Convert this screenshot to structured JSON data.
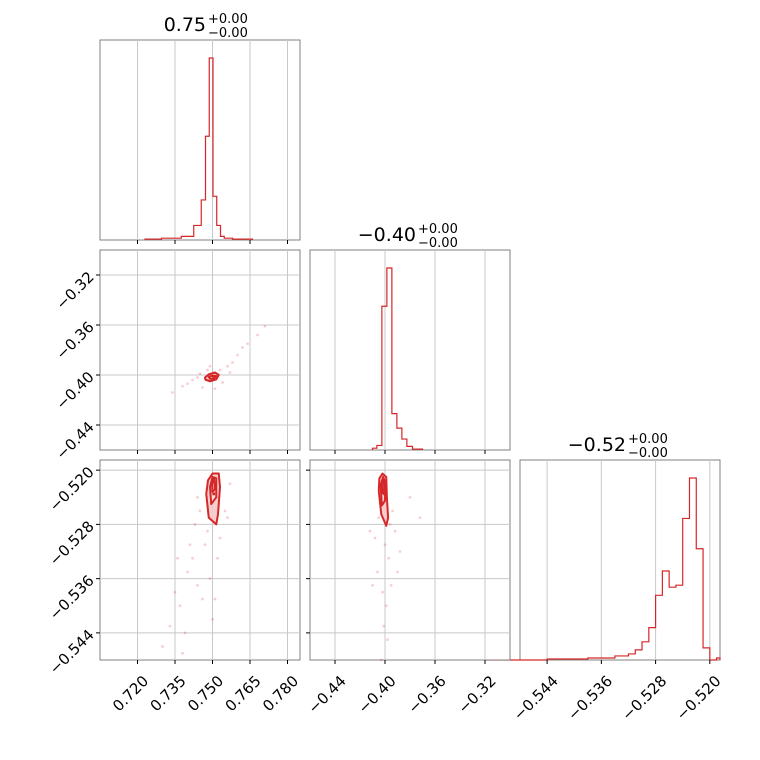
{
  "colors": {
    "series": "#d62728",
    "fill": "#f5c9c9",
    "grid": "#c8c8c8",
    "frame": "#808080"
  },
  "chart_data": {
    "type": "corner",
    "parameters": [
      "p0",
      "p1",
      "p2"
    ],
    "titles": [
      {
        "value": "0.75",
        "plus": "+0.00",
        "minus": "−0.00"
      },
      {
        "value": "−0.40",
        "plus": "+0.00",
        "minus": "−0.00"
      },
      {
        "value": "−0.52",
        "plus": "+0.00",
        "minus": "−0.00"
      }
    ],
    "ranges": [
      [
        0.705,
        0.785
      ],
      [
        -0.46,
        -0.3
      ],
      [
        -0.548,
        -0.5185
      ]
    ],
    "ticks": [
      {
        "values": [
          0.72,
          0.735,
          0.75,
          0.765,
          0.78
        ],
        "labels": [
          "0.720",
          "0.735",
          "0.750",
          "0.765",
          "0.780"
        ]
      },
      {
        "values": [
          -0.44,
          -0.4,
          -0.36,
          -0.32
        ],
        "labels": [
          "−0.44",
          "−0.40",
          "−0.36",
          "−0.32"
        ]
      },
      {
        "values": [
          -0.544,
          -0.536,
          -0.528,
          -0.52
        ],
        "labels": [
          "−0.544",
          "−0.536",
          "−0.528",
          "−0.520"
        ]
      }
    ],
    "histograms": [
      {
        "edges": [
          0.723,
          0.7296,
          0.7375,
          0.7425,
          0.7455,
          0.7472,
          0.7487,
          0.7502,
          0.7517,
          0.7532,
          0.7547,
          0.758,
          0.766
        ],
        "counts": [
          0.005,
          0.01,
          0.02,
          0.08,
          0.22,
          0.57,
          1.0,
          0.24,
          0.08,
          0.02,
          0.01,
          0.005
        ]
      },
      {
        "edges": [
          -0.41,
          -0.4065,
          -0.4025,
          -0.3985,
          -0.3945,
          -0.3905,
          -0.3865,
          -0.3825,
          -0.378,
          -0.37
        ],
        "counts": [
          0.01,
          0.025,
          0.79,
          1.0,
          0.2,
          0.12,
          0.06,
          0.02,
          0.005
        ]
      },
      {
        "edges": [
          -0.553,
          -0.544,
          -0.543,
          -0.538,
          -0.534,
          -0.532,
          -0.531,
          -0.53,
          -0.529,
          -0.528,
          -0.527,
          -0.526,
          -0.525,
          -0.524,
          -0.523,
          -0.522,
          -0.521,
          -0.52,
          -0.519,
          -0.5185
        ],
        "counts": [
          0.0,
          0.005,
          0.005,
          0.01,
          0.02,
          0.03,
          0.05,
          0.09,
          0.16,
          0.32,
          0.44,
          0.36,
          0.37,
          0.7,
          0.9,
          0.55,
          0.06,
          0.0,
          0.01
        ]
      }
    ],
    "scatters": [
      {
        "x_param": 0,
        "y_param": 1,
        "center": [
          0.7505,
          -0.4015
        ],
        "contours": [
          [
            [
              0.747,
              -0.402
            ],
            [
              0.7485,
              -0.3995
            ],
            [
              0.751,
              -0.398
            ],
            [
              0.7525,
              -0.4
            ],
            [
              0.7515,
              -0.4035
            ],
            [
              0.749,
              -0.405
            ],
            [
              0.7472,
              -0.4038
            ]
          ],
          [
            [
              0.7485,
              -0.4015
            ],
            [
              0.75,
              -0.4005
            ],
            [
              0.7515,
              -0.4008
            ],
            [
              0.7505,
              -0.403
            ],
            [
              0.749,
              -0.403
            ]
          ]
        ],
        "samples": [
          [
            0.742,
            -0.404
          ],
          [
            0.745,
            -0.399
          ],
          [
            0.753,
            -0.396
          ],
          [
            0.756,
            -0.393
          ],
          [
            0.76,
            -0.384
          ],
          [
            0.762,
            -0.378
          ],
          [
            0.768,
            -0.368
          ],
          [
            0.771,
            -0.361
          ],
          [
            0.738,
            -0.409
          ],
          [
            0.734,
            -0.414
          ],
          [
            0.746,
            -0.41
          ],
          [
            0.754,
            -0.406
          ],
          [
            0.748,
            -0.396
          ],
          [
            0.758,
            -0.39
          ],
          [
            0.744,
            -0.402
          ],
          [
            0.751,
            -0.411
          ],
          [
            0.757,
            -0.398
          ],
          [
            0.74,
            -0.407
          ],
          [
            0.764,
            -0.375
          ],
          [
            0.749,
            -0.393
          ]
        ]
      },
      {
        "x_param": 0,
        "y_param": 2,
        "center": [
          0.7505,
          -0.5235
        ],
        "contours": [
          [
            [
              0.7475,
              -0.5235
            ],
            [
              0.7482,
              -0.5215
            ],
            [
              0.75,
              -0.5205
            ],
            [
              0.7525,
              -0.5205
            ],
            [
              0.753,
              -0.5225
            ],
            [
              0.7522,
              -0.5265
            ],
            [
              0.7515,
              -0.528
            ],
            [
              0.7485,
              -0.527
            ]
          ],
          [
            [
              0.749,
              -0.5225
            ],
            [
              0.75,
              -0.521
            ],
            [
              0.7515,
              -0.5212
            ],
            [
              0.7515,
              -0.524
            ],
            [
              0.7495,
              -0.525
            ]
          ],
          [
            [
              0.7498,
              -0.522
            ],
            [
              0.7506,
              -0.5212
            ],
            [
              0.751,
              -0.5228
            ],
            [
              0.75,
              -0.5232
            ]
          ]
        ],
        "samples": [
          [
            0.745,
            -0.526
          ],
          [
            0.743,
            -0.528
          ],
          [
            0.742,
            -0.533
          ],
          [
            0.74,
            -0.535
          ],
          [
            0.744,
            -0.537
          ],
          [
            0.747,
            -0.531
          ],
          [
            0.749,
            -0.536
          ],
          [
            0.751,
            -0.539
          ],
          [
            0.737,
            -0.54
          ],
          [
            0.733,
            -0.543
          ],
          [
            0.73,
            -0.546
          ],
          [
            0.738,
            -0.547
          ],
          [
            0.753,
            -0.53
          ],
          [
            0.755,
            -0.526
          ],
          [
            0.746,
            -0.539
          ],
          [
            0.741,
            -0.531
          ],
          [
            0.736,
            -0.533
          ],
          [
            0.752,
            -0.533
          ],
          [
            0.748,
            -0.529
          ],
          [
            0.75,
            -0.542
          ],
          [
            0.744,
            -0.524
          ],
          [
            0.757,
            -0.522
          ],
          [
            0.756,
            -0.527
          ],
          [
            0.735,
            -0.538
          ],
          [
            0.739,
            -0.544
          ]
        ]
      },
      {
        "x_param": 1,
        "y_param": 2,
        "center": [
          -0.4005,
          -0.5235
        ],
        "contours": [
          [
            [
              -0.405,
              -0.523
            ],
            [
              -0.4045,
              -0.5212
            ],
            [
              -0.402,
              -0.5205
            ],
            [
              -0.399,
              -0.521
            ],
            [
              -0.3985,
              -0.524
            ],
            [
              -0.3975,
              -0.527
            ],
            [
              -0.399,
              -0.5282
            ],
            [
              -0.403,
              -0.5265
            ]
          ],
          [
            [
              -0.4035,
              -0.5222
            ],
            [
              -0.4015,
              -0.521
            ],
            [
              -0.3998,
              -0.5218
            ],
            [
              -0.4,
              -0.5245
            ],
            [
              -0.4025,
              -0.5252
            ]
          ],
          [
            [
              -0.4025,
              -0.522
            ],
            [
              -0.401,
              -0.5214
            ],
            [
              -0.4005,
              -0.523
            ],
            [
              -0.402,
              -0.5234
            ]
          ]
        ],
        "samples": [
          [
            -0.405,
            -0.527
          ],
          [
            -0.408,
            -0.53
          ],
          [
            -0.4,
            -0.531
          ],
          [
            -0.397,
            -0.533
          ],
          [
            -0.395,
            -0.537
          ],
          [
            -0.399,
            -0.54
          ],
          [
            -0.401,
            -0.543
          ],
          [
            -0.406,
            -0.535
          ],
          [
            -0.41,
            -0.537
          ],
          [
            -0.392,
            -0.529
          ],
          [
            -0.394,
            -0.526
          ],
          [
            -0.398,
            -0.545
          ],
          [
            -0.403,
            -0.548
          ],
          [
            -0.38,
            -0.524
          ],
          [
            -0.372,
            -0.527
          ],
          [
            -0.412,
            -0.529
          ],
          [
            -0.39,
            -0.535
          ],
          [
            -0.396,
            -0.528
          ],
          [
            -0.402,
            -0.538
          ],
          [
            -0.388,
            -0.532
          ]
        ]
      }
    ]
  }
}
